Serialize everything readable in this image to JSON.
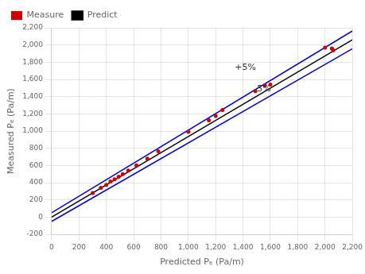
{
  "chart_data": {
    "type": "scatter",
    "xlabel": "Predicted Pₑ (Pa/m)",
    "ylabel": "Measured Pₑ (Pa/m)",
    "xlim": [
      0,
      2200
    ],
    "ylim": [
      -200,
      2200
    ],
    "xticks": [
      0,
      200,
      400,
      600,
      800,
      1000,
      1200,
      1400,
      1600,
      1800,
      2000,
      2200
    ],
    "yticks": [
      -200,
      0,
      200,
      400,
      600,
      800,
      1000,
      1200,
      1400,
      1600,
      1800,
      2000,
      2200
    ],
    "grid": true,
    "legend": "upper left",
    "series": [
      {
        "type": "line",
        "color": "#0000cc",
        "x": [
          0,
          2200
        ],
        "values": [
          50,
          2163
        ]
      },
      {
        "type": "line",
        "color": "#0000cc",
        "x": [
          0,
          2200
        ],
        "values": [
          -50,
          1957
        ]
      },
      {
        "name": "Predict",
        "type": "line",
        "color": "#000000",
        "x": [
          0,
          2200
        ],
        "values": [
          0,
          2060
        ]
      },
      {
        "name": "Measure",
        "type": "scatter",
        "marker": "circle",
        "color": "#cc0000",
        "x": [
          300,
          360,
          400,
          430,
          460,
          490,
          520,
          560,
          620,
          700,
          780,
          1000,
          1150,
          1200,
          1250,
          1490,
          1560,
          1600,
          2000,
          2050,
          2060
        ],
        "values": [
          280,
          340,
          375,
          415,
          440,
          470,
          500,
          540,
          600,
          680,
          765,
          990,
          1125,
          1175,
          1245,
          1465,
          1530,
          1540,
          1970,
          1960,
          1940
        ]
      }
    ],
    "annotations": [
      {
        "text": "+5%",
        "x": 1340,
        "y": 1690
      },
      {
        "text": "-5%",
        "x": 1480,
        "y": 1440
      }
    ]
  }
}
